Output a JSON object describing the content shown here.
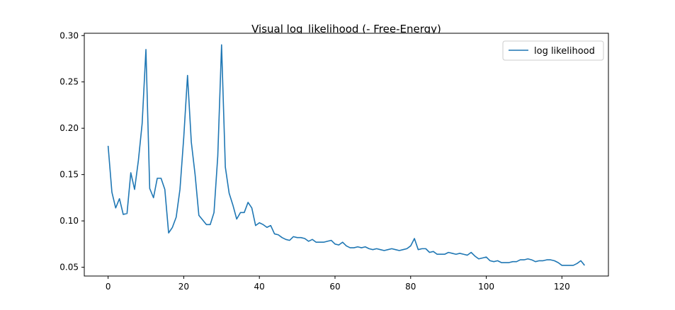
{
  "chart_data": {
    "type": "line",
    "title": "Visual log_likelihood (- Free-Energy)",
    "xlabel": "",
    "ylabel": "",
    "xlim": [
      -6.3,
      132.3
    ],
    "ylim": [
      0.0405,
      0.3025
    ],
    "xticks": [
      0,
      20,
      40,
      60,
      80,
      100,
      120
    ],
    "yticks": [
      0.05,
      0.1,
      0.15,
      0.2,
      0.25,
      0.3
    ],
    "ytick_labels": [
      "0.05",
      "0.10",
      "0.15",
      "0.20",
      "0.25",
      "0.30"
    ],
    "grid": false,
    "legend_position": "top-right",
    "series": [
      {
        "name": "log likelihood",
        "color": "#1f77b4",
        "x": [
          0,
          1,
          2,
          3,
          4,
          5,
          6,
          7,
          8,
          9,
          10,
          11,
          12,
          13,
          14,
          15,
          16,
          17,
          18,
          19,
          20,
          21,
          22,
          23,
          24,
          25,
          26,
          27,
          28,
          29,
          30,
          31,
          32,
          33,
          34,
          35,
          36,
          37,
          38,
          39,
          40,
          41,
          42,
          43,
          44,
          45,
          46,
          47,
          48,
          49,
          50,
          51,
          52,
          53,
          54,
          55,
          56,
          57,
          58,
          59,
          60,
          61,
          62,
          63,
          64,
          65,
          66,
          67,
          68,
          69,
          70,
          71,
          72,
          73,
          74,
          75,
          76,
          77,
          78,
          79,
          80,
          81,
          82,
          83,
          84,
          85,
          86,
          87,
          88,
          89,
          90,
          91,
          92,
          93,
          94,
          95,
          96,
          97,
          98,
          99,
          100,
          101,
          102,
          103,
          104,
          105,
          106,
          107,
          108,
          109,
          110,
          111,
          112,
          113,
          114,
          115,
          116,
          117,
          118,
          119,
          120,
          121,
          122,
          123,
          124,
          125,
          126
        ],
        "values": [
          0.181,
          0.131,
          0.114,
          0.124,
          0.107,
          0.108,
          0.152,
          0.134,
          0.165,
          0.205,
          0.285,
          0.135,
          0.125,
          0.146,
          0.146,
          0.134,
          0.087,
          0.093,
          0.104,
          0.134,
          0.19,
          0.257,
          0.185,
          0.15,
          0.106,
          0.101,
          0.096,
          0.096,
          0.109,
          0.17,
          0.29,
          0.158,
          0.13,
          0.117,
          0.102,
          0.109,
          0.109,
          0.12,
          0.114,
          0.095,
          0.098,
          0.096,
          0.093,
          0.095,
          0.086,
          0.085,
          0.082,
          0.08,
          0.079,
          0.083,
          0.082,
          0.082,
          0.081,
          0.078,
          0.08,
          0.077,
          0.077,
          0.077,
          0.078,
          0.079,
          0.075,
          0.074,
          0.077,
          0.073,
          0.071,
          0.071,
          0.072,
          0.071,
          0.072,
          0.07,
          0.069,
          0.07,
          0.069,
          0.068,
          0.069,
          0.07,
          0.069,
          0.068,
          0.069,
          0.07,
          0.073,
          0.081,
          0.069,
          0.07,
          0.07,
          0.066,
          0.067,
          0.064,
          0.064,
          0.064,
          0.066,
          0.065,
          0.064,
          0.065,
          0.064,
          0.063,
          0.066,
          0.062,
          0.059,
          0.06,
          0.061,
          0.057,
          0.056,
          0.057,
          0.055,
          0.055,
          0.055,
          0.056,
          0.056,
          0.058,
          0.058,
          0.059,
          0.058,
          0.056,
          0.057,
          0.057,
          0.058,
          0.058,
          0.057,
          0.055,
          0.052,
          0.052,
          0.052,
          0.052,
          0.054,
          0.057,
          0.052
        ]
      }
    ]
  }
}
